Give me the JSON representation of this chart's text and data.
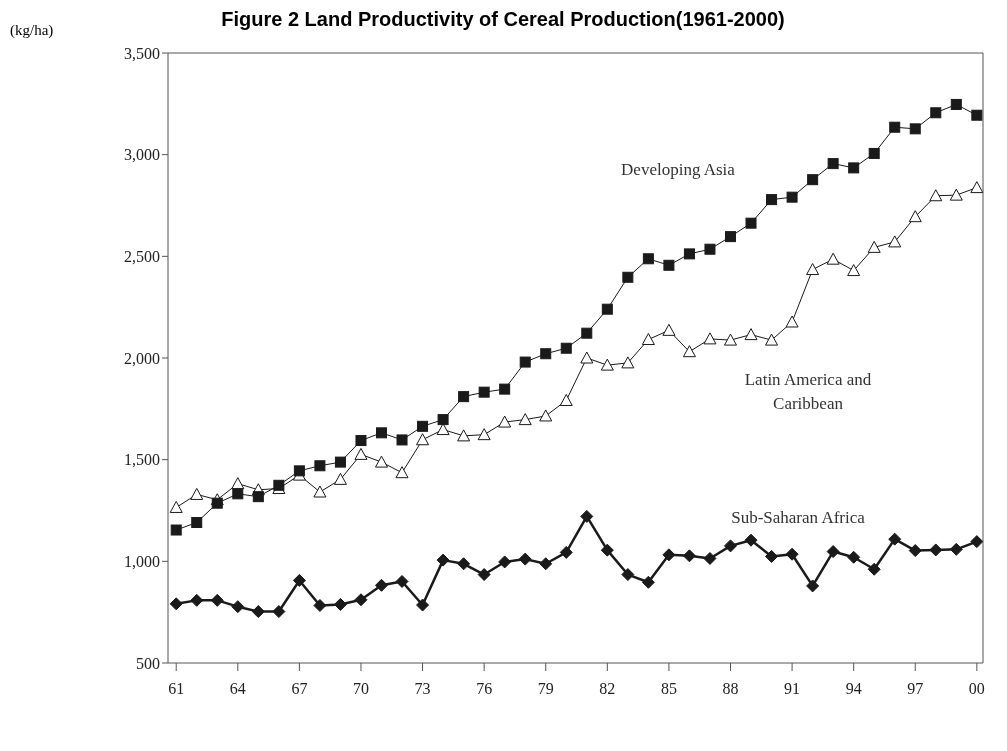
{
  "chart_data": {
    "type": "line",
    "title": "Figure 2  Land Productivity of Cereal Production(1961-2000)",
    "ylabel": "(kg/ha)",
    "x": [
      1961,
      1962,
      1963,
      1964,
      1965,
      1966,
      1967,
      1968,
      1969,
      1970,
      1971,
      1972,
      1973,
      1974,
      1975,
      1976,
      1977,
      1978,
      1979,
      1980,
      1981,
      1982,
      1983,
      1984,
      1985,
      1986,
      1987,
      1988,
      1989,
      1990,
      1991,
      1992,
      1993,
      1994,
      1995,
      1996,
      1997,
      1998,
      1999,
      2000
    ],
    "series": [
      {
        "name": "Developing Asia",
        "color": "#1a1a1a",
        "marker": "square",
        "values": [
          1154,
          1191,
          1286,
          1332,
          1318,
          1374,
          1445,
          1470,
          1488,
          1594,
          1632,
          1597,
          1664,
          1697,
          1810,
          1832,
          1847,
          1980,
          2021,
          2048,
          2122,
          2240,
          2397,
          2488,
          2456,
          2512,
          2535,
          2597,
          2663,
          2779,
          2791,
          2877,
          2956,
          2935,
          3006,
          3135,
          3127,
          3206,
          3247,
          3194
        ]
      },
      {
        "name": "Latin America and Caribbean",
        "color": "#1a1a1a",
        "marker": "triangle",
        "values": [
          1265,
          1329,
          1303,
          1382,
          1352,
          1358,
          1424,
          1341,
          1403,
          1526,
          1488,
          1436,
          1598,
          1648,
          1617,
          1623,
          1685,
          1697,
          1715,
          1791,
          2000,
          1965,
          1976,
          2091,
          2136,
          2031,
          2094,
          2088,
          2115,
          2088,
          2177,
          2435,
          2486,
          2430,
          2544,
          2571,
          2695,
          2798,
          2801,
          2838
        ]
      },
      {
        "name": "Sub-Saharan Africa",
        "color": "#1a1a1a",
        "marker": "diamond",
        "values": [
          791,
          808,
          808,
          777,
          753,
          753,
          906,
          783,
          788,
          811,
          882,
          901,
          785,
          1006,
          988,
          935,
          997,
          1011,
          988,
          1044,
          1221,
          1055,
          935,
          897,
          1032,
          1027,
          1014,
          1076,
          1104,
          1024,
          1035,
          879,
          1048,
          1020,
          961,
          1109,
          1053,
          1056,
          1059,
          1097
        ]
      }
    ],
    "xlim": [
      1960.6,
      2000.3
    ],
    "xticks": [
      {
        "value": 1961,
        "label": "61"
      },
      {
        "value": 1964,
        "label": "64"
      },
      {
        "value": 1967,
        "label": "67"
      },
      {
        "value": 1970,
        "label": "70"
      },
      {
        "value": 1973,
        "label": "73"
      },
      {
        "value": 1976,
        "label": "76"
      },
      {
        "value": 1979,
        "label": "79"
      },
      {
        "value": 1982,
        "label": "82"
      },
      {
        "value": 1985,
        "label": "85"
      },
      {
        "value": 1988,
        "label": "88"
      },
      {
        "value": 1991,
        "label": "91"
      },
      {
        "value": 1994,
        "label": "94"
      },
      {
        "value": 1997,
        "label": "97"
      },
      {
        "value": 2000,
        "label": "00"
      }
    ],
    "ylim": [
      500,
      3500
    ],
    "yticks": [
      {
        "value": 500,
        "label": "500"
      },
      {
        "value": 1000,
        "label": "1,000"
      },
      {
        "value": 1500,
        "label": "1,500"
      },
      {
        "value": 2000,
        "label": "2,000"
      },
      {
        "value": 2500,
        "label": "2,500"
      },
      {
        "value": 3000,
        "label": "3,000"
      },
      {
        "value": 3500,
        "label": "3,500"
      }
    ]
  }
}
